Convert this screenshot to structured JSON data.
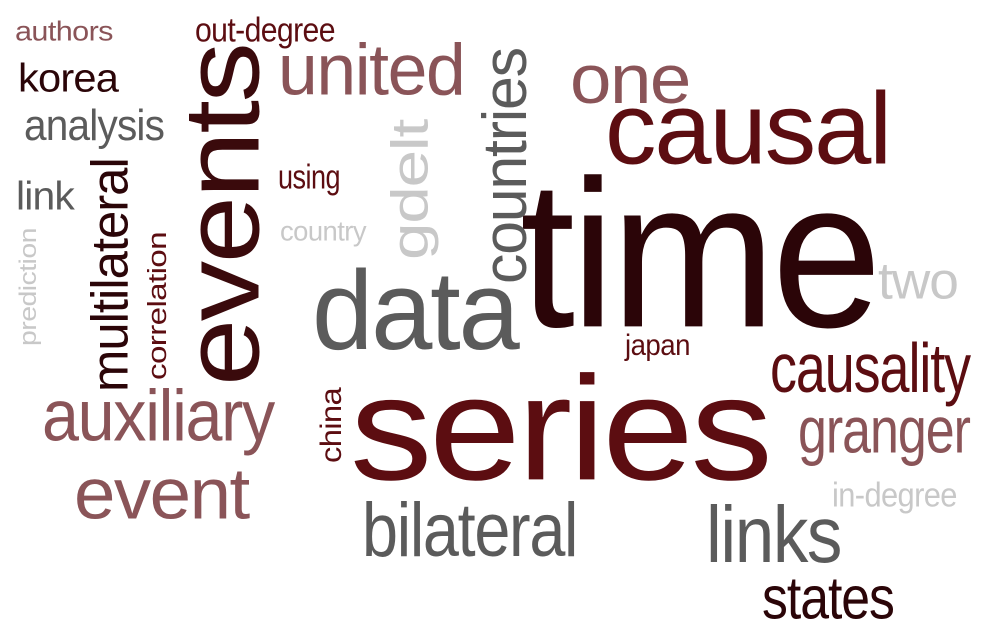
{
  "words": [
    {
      "id": "time",
      "text": "time",
      "color": "#2b0508"
    },
    {
      "id": "series",
      "text": "series",
      "color": "#5c0d11"
    },
    {
      "id": "data",
      "text": "data",
      "color": "#5b5b5b"
    },
    {
      "id": "events",
      "text": "events",
      "color": "#3a0a0c"
    },
    {
      "id": "causal",
      "text": "causal",
      "color": "#5c0d11"
    },
    {
      "id": "united",
      "text": "united",
      "color": "#8a5458"
    },
    {
      "id": "countries",
      "text": "countries",
      "color": "#5b5b5b"
    },
    {
      "id": "one",
      "text": "one",
      "color": "#8a5458"
    },
    {
      "id": "links",
      "text": "links",
      "color": "#5b5b5b"
    },
    {
      "id": "auxiliary",
      "text": "auxiliary",
      "color": "#8a5458"
    },
    {
      "id": "event",
      "text": "event",
      "color": "#8a5458"
    },
    {
      "id": "bilateral",
      "text": "bilateral",
      "color": "#5b5b5b"
    },
    {
      "id": "multilateral",
      "text": "multilateral",
      "color": "#2b0508"
    },
    {
      "id": "causality",
      "text": "causality",
      "color": "#5c0d11"
    },
    {
      "id": "granger",
      "text": "granger",
      "color": "#8a5458"
    },
    {
      "id": "states",
      "text": "states",
      "color": "#2b0508"
    },
    {
      "id": "gdelt",
      "text": "gdelt",
      "color": "#c8c8c8"
    },
    {
      "id": "two",
      "text": "two",
      "color": "#c8c8c8"
    },
    {
      "id": "korea",
      "text": "korea",
      "color": "#2b0508"
    },
    {
      "id": "analysis",
      "text": "analysis",
      "color": "#5b5b5b"
    },
    {
      "id": "out-degree",
      "text": "out-degree",
      "color": "#5c0d11"
    },
    {
      "id": "authors",
      "text": "authors",
      "color": "#8a5458"
    },
    {
      "id": "link",
      "text": "link",
      "color": "#5b5b5b"
    },
    {
      "id": "prediction",
      "text": "prediction",
      "color": "#c8c8c8"
    },
    {
      "id": "correlation",
      "text": "correlation",
      "color": "#5c0d11"
    },
    {
      "id": "using",
      "text": "using",
      "color": "#5c0d11"
    },
    {
      "id": "country",
      "text": "country",
      "color": "#c8c8c8"
    },
    {
      "id": "japan",
      "text": "japan",
      "color": "#5c0d11"
    },
    {
      "id": "china",
      "text": "china",
      "color": "#5c0d11"
    },
    {
      "id": "in-degree",
      "text": "in-degree",
      "color": "#c8c8c8"
    }
  ]
}
